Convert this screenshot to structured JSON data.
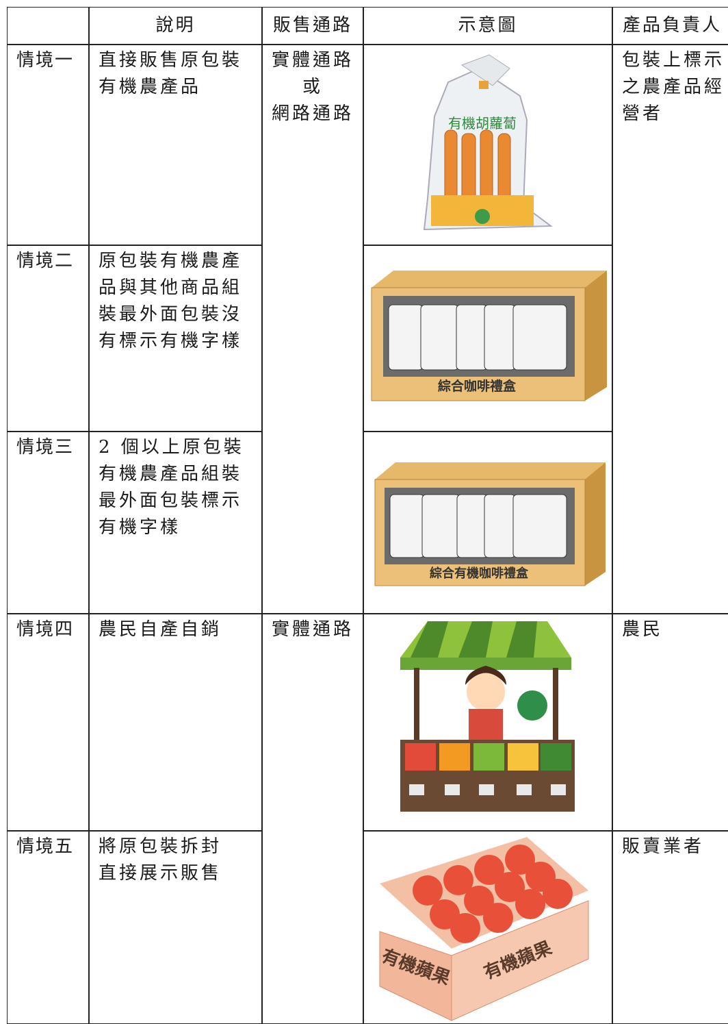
{
  "table": {
    "header": [
      "說明",
      "販售通路",
      "示意圖",
      "產品負責人"
    ],
    "rows": [
      {
        "scenario": "情境一",
        "description": [
          "直接販售原包裝",
          "有機農產品"
        ]
      },
      {
        "scenario": "情境二",
        "description": [
          "原包裝有機農產",
          "品與其他商品組",
          "裝最外面包裝沒",
          "有標示有機字樣"
        ]
      },
      {
        "scenario": "情境三",
        "description": [
          "2 個以上原包裝",
          "有機農產品組裝",
          "最外面包裝標示",
          "有機字樣"
        ]
      },
      {
        "scenario": "情境四",
        "description": [
          "農民自產自銷"
        ]
      },
      {
        "scenario": "情境五",
        "description": [
          "將原包裝拆封",
          "直接展示販售"
        ]
      }
    ],
    "channels": [
      [
        "實體通路",
        "或",
        "網路通路"
      ],
      [
        "實體通路"
      ]
    ],
    "responsible": [
      [
        "包裝上標示",
        "之農產品經",
        "營者"
      ],
      [
        "農民"
      ],
      [
        "販賣業者"
      ]
    ],
    "image_labels": {
      "carrot": "有機胡蘿蔔",
      "coffee_box": "綜合咖啡禮盒",
      "organic_coffee_box": "綜合有機咖啡禮盒",
      "apple_crate": "有機蘋果"
    }
  }
}
